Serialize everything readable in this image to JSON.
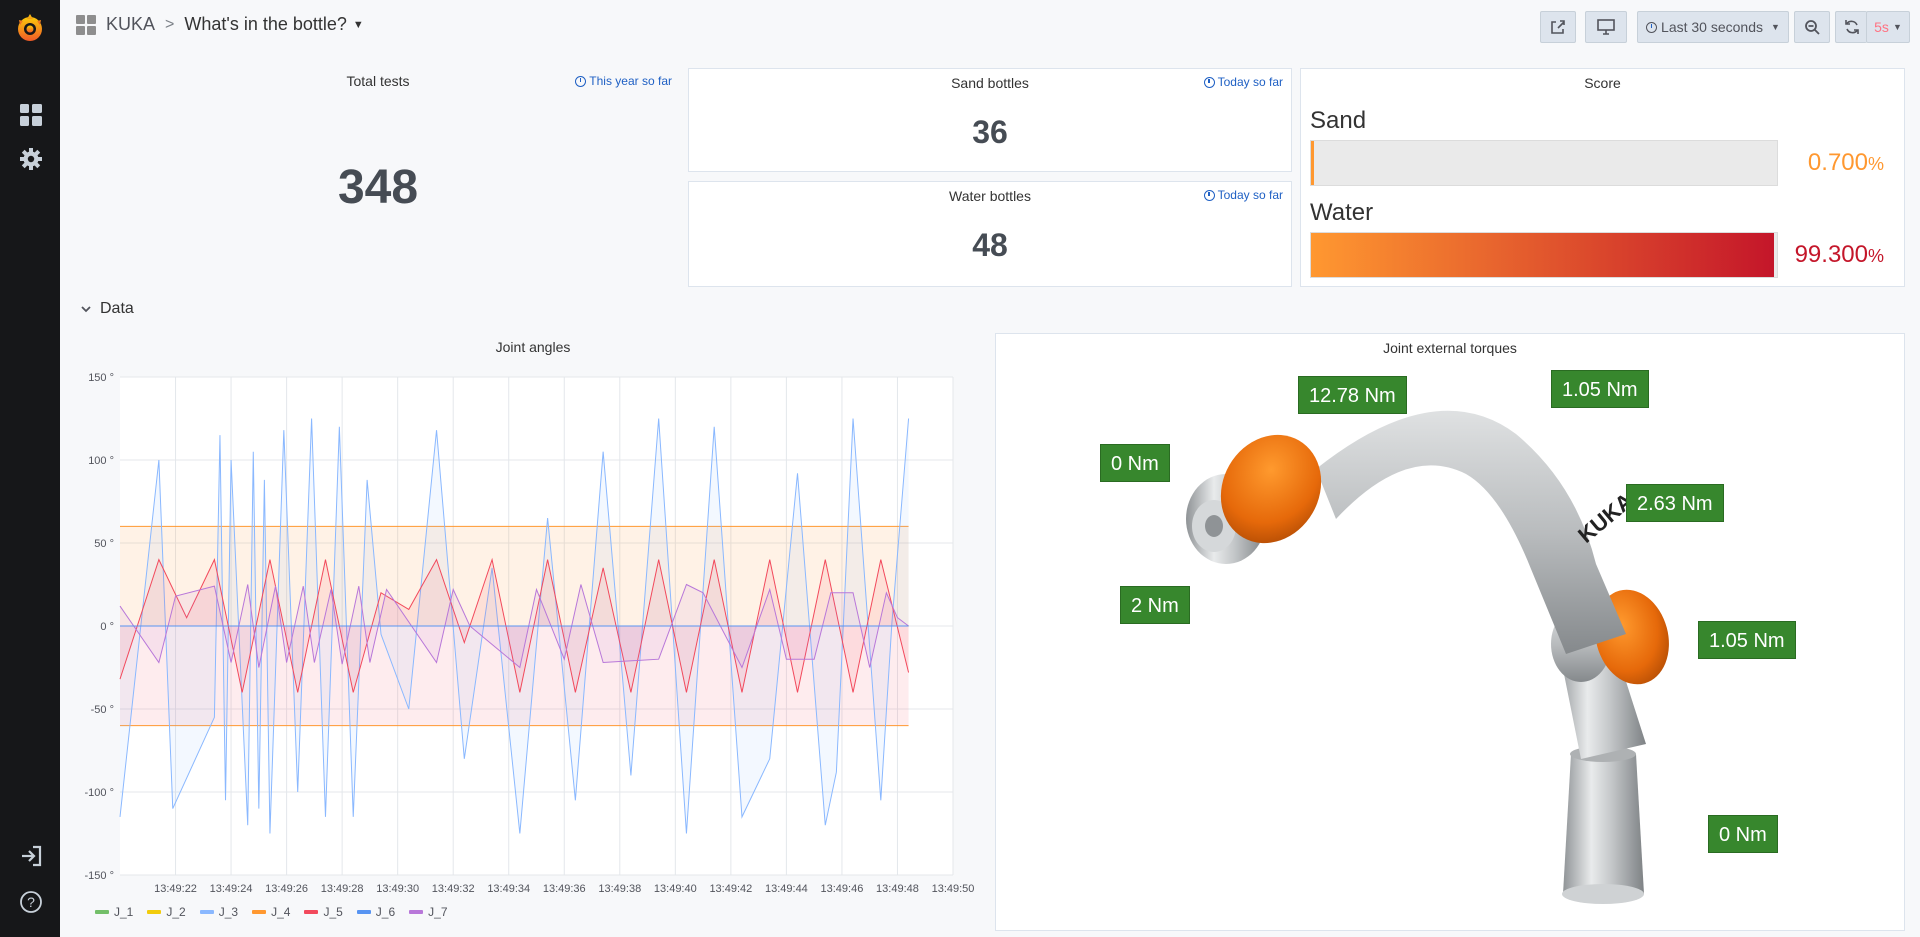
{
  "breadcrumb": {
    "folder": "KUKA",
    "separator": ">",
    "title": "What's in the bottle?"
  },
  "toolbar": {
    "time_range": "Last 30 seconds",
    "refresh_interval": "5s"
  },
  "colors": {
    "accent": "#1f60c4",
    "sand": "#ff9830",
    "water_start": "#ff9830",
    "water_end": "#c4162a",
    "torque_badge": "#37872d",
    "threshold": "#ff9830"
  },
  "panels": {
    "total_tests": {
      "title": "Total tests",
      "info": "This year so far",
      "value": "348"
    },
    "sand_bottles": {
      "title": "Sand bottles",
      "info": "Today so far",
      "value": "36"
    },
    "water_bottles": {
      "title": "Water bottles",
      "info": "Today so far",
      "value": "48"
    },
    "score": {
      "title": "Score",
      "bars": [
        {
          "label": "Sand",
          "value": 0.7,
          "value_text": "0.700",
          "unit": "%"
        },
        {
          "label": "Water",
          "value": 99.3,
          "value_text": "99.300",
          "unit": "%"
        }
      ]
    }
  },
  "row": {
    "title": "Data"
  },
  "joint_angles": {
    "title": "Joint angles"
  },
  "torques": {
    "title": "Joint external torques",
    "labels": [
      "0 Nm",
      "12.78 Nm",
      "1.05 Nm",
      "2.63 Nm",
      "2 Nm",
      "1.05 Nm",
      "0 Nm"
    ]
  },
  "chart_data": {
    "type": "line",
    "title": "Joint angles",
    "ylim": [
      -150,
      150
    ],
    "y_ticks": [
      "150 °",
      "100 °",
      "50 °",
      "0 °",
      "-50 °",
      "-100 °",
      "-150 °"
    ],
    "x_ticks": [
      "13:49:22",
      "13:49:24",
      "13:49:26",
      "13:49:28",
      "13:49:30",
      "13:49:32",
      "13:49:34",
      "13:49:36",
      "13:49:38",
      "13:49:40",
      "13:49:42",
      "13:49:44",
      "13:49:46",
      "13:49:48",
      "13:49:50"
    ],
    "thresholds": [
      60,
      -60
    ],
    "grid": true,
    "legend": "bottom-left",
    "series": [
      {
        "name": "J_1",
        "color": "#73bf69",
        "t": [
          0,
          30
        ],
        "values": [
          0,
          0
        ]
      },
      {
        "name": "J_2",
        "color": "#f2cc0c",
        "t": [
          0,
          30
        ],
        "values": [
          0,
          0
        ]
      },
      {
        "name": "J_3",
        "color": "#8ab8ff",
        "t": [
          0,
          1.4,
          1.9,
          3.4,
          3.6,
          3.8,
          4.0,
          4.6,
          4.8,
          5.0,
          5.2,
          5.4,
          5.9,
          6.4,
          6.9,
          7.4,
          7.9,
          8.4,
          8.9,
          9.4,
          10.4,
          11.4,
          12.4,
          13.4,
          14.4,
          15.4,
          16.4,
          17.4,
          18.4,
          19.4,
          20.4,
          21.4,
          22.4,
          23.4,
          24.4,
          25.4,
          25.8,
          26.4,
          27.4,
          27.8,
          28.4
        ],
        "values": [
          -115,
          100,
          -110,
          -55,
          115,
          -105,
          100,
          -120,
          105,
          -110,
          88,
          -125,
          118,
          -100,
          125,
          -115,
          120,
          -115,
          88,
          -5,
          -50,
          118,
          -80,
          35,
          -125,
          65,
          -105,
          105,
          -90,
          125,
          -125,
          120,
          -115,
          -80,
          92,
          -120,
          -88,
          125,
          -105,
          2,
          125
        ]
      },
      {
        "name": "J_4",
        "color": "#ff9830",
        "t": [
          0,
          30
        ],
        "values": [
          0,
          0
        ]
      },
      {
        "name": "J_5",
        "color": "#f2495c",
        "t": [
          0,
          1.4,
          2.4,
          3.4,
          4.4,
          5.4,
          6.4,
          7.4,
          8.4,
          9.4,
          10.4,
          11.4,
          12.4,
          13.4,
          14.4,
          15.4,
          16.4,
          17.4,
          18.4,
          19.4,
          20.4,
          21.4,
          22.4,
          23.4,
          24.4,
          25.4,
          26.4,
          27.4,
          28.4
        ],
        "values": [
          -32,
          40,
          5,
          40,
          -40,
          40,
          -40,
          40,
          -40,
          20,
          10,
          40,
          -10,
          40,
          -40,
          40,
          -40,
          35,
          -40,
          40,
          -40,
          40,
          -40,
          40,
          -40,
          40,
          -40,
          40,
          -28
        ]
      },
      {
        "name": "J_6",
        "color": "#5794f2",
        "t": [
          0,
          30
        ],
        "values": [
          0,
          0
        ]
      },
      {
        "name": "J_7",
        "color": "#b877d9",
        "t": [
          0,
          1.4,
          2.0,
          3.4,
          4.0,
          4.6,
          5.0,
          5.6,
          6.0,
          6.6,
          7.0,
          7.6,
          8.0,
          8.6,
          9.0,
          9.6,
          11.4,
          12.0,
          12.6,
          14.4,
          15.0,
          16.0,
          16.6,
          17.4,
          19.4,
          20.4,
          21.0,
          22.4,
          23.4,
          24.0,
          25.0,
          25.6,
          26.4,
          27.0,
          27.6,
          28.0,
          28.4
        ],
        "values": [
          12,
          -22,
          18,
          24,
          -22,
          25,
          -25,
          24,
          -22,
          24,
          -22,
          22,
          -23,
          24,
          -22,
          22,
          -22,
          22,
          0,
          -25,
          22,
          -20,
          25,
          -22,
          -20,
          25,
          20,
          -25,
          22,
          -20,
          -20,
          20,
          20,
          -25,
          20,
          5,
          0
        ]
      }
    ]
  }
}
